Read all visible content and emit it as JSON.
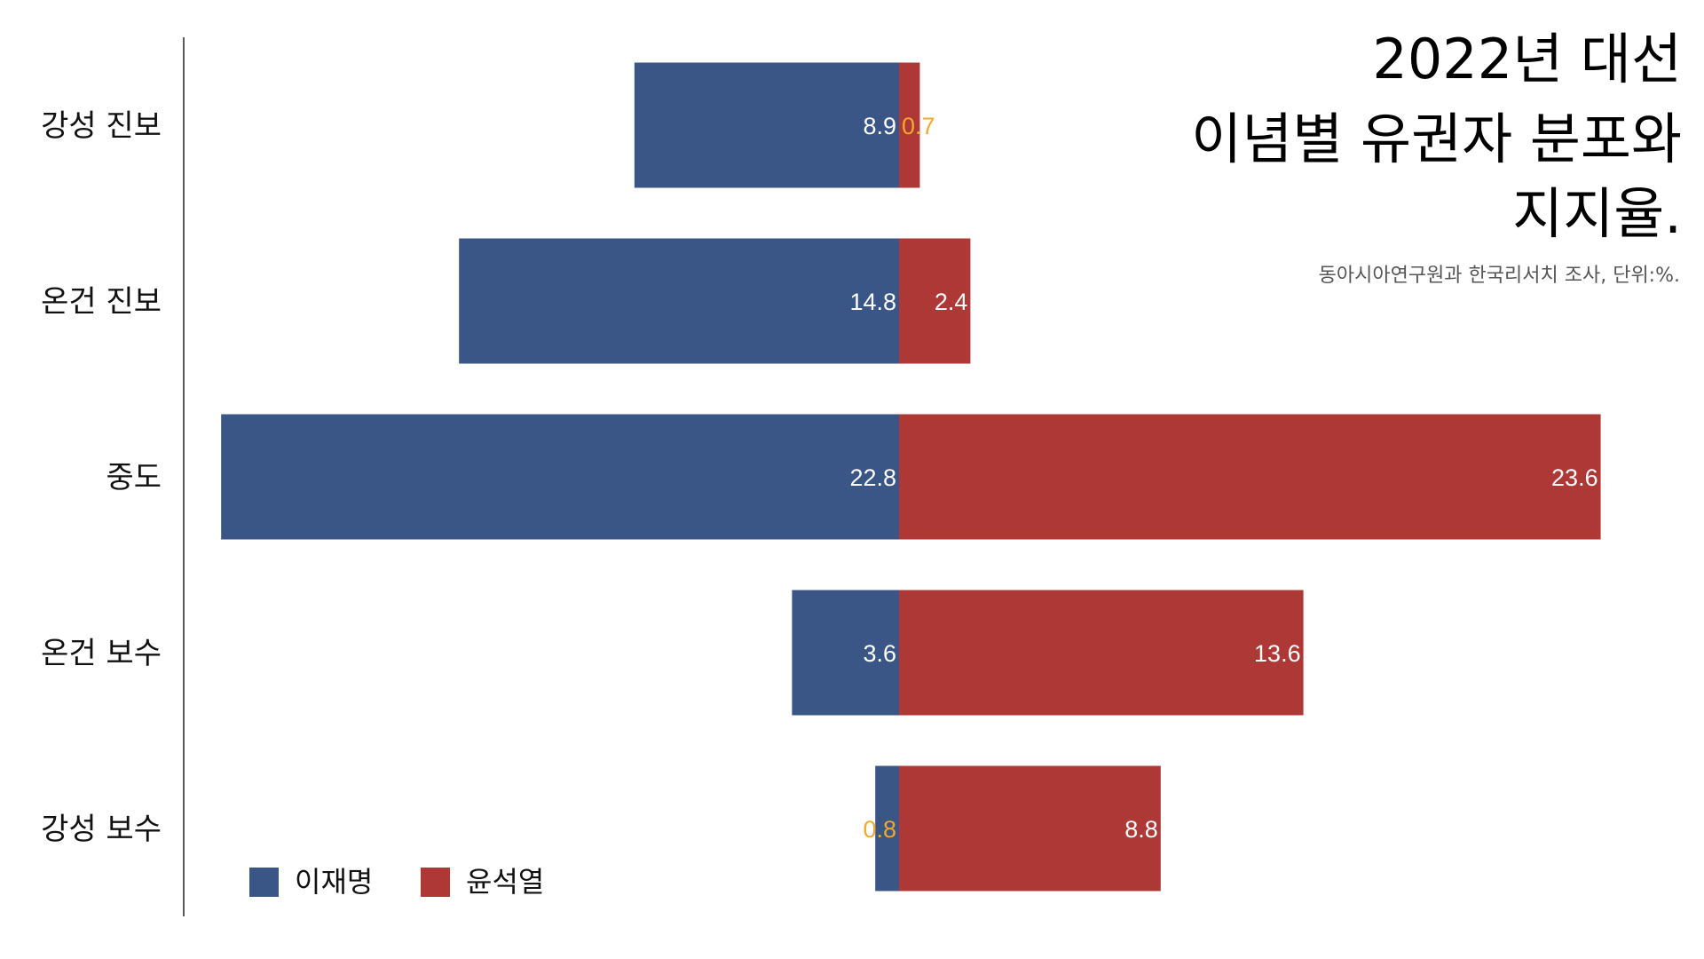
{
  "chart_data": {
    "type": "bar",
    "orientation": "horizontal-diverging",
    "title_lines": [
      "2022년 대선",
      "이념별 유권자 분포와",
      "지지율."
    ],
    "subtitle": "동아시아연구원과 한국리서치 조사, 단위:%.",
    "categories": [
      "강성 진보",
      "온건 진보",
      "중도",
      "온건 보수",
      "강성 보수"
    ],
    "series": [
      {
        "name": "이재명",
        "color": "#3A5686",
        "direction": "left",
        "values": [
          8.9,
          14.8,
          22.8,
          3.6,
          0.8
        ],
        "label_text": [
          "8.9",
          "14.8",
          "22.8",
          "3.6",
          "0.8"
        ]
      },
      {
        "name": "윤석열",
        "color": "#AE3836",
        "direction": "right",
        "values": [
          0.7,
          2.4,
          23.6,
          13.6,
          8.8
        ],
        "label_text": [
          "0.7",
          "2.4",
          "23.6",
          "13.6",
          "8.8"
        ]
      }
    ],
    "small_label_color": "#F0A830",
    "label_color": "#FFFFFF",
    "legend_position": "bottom-left",
    "grid": false
  }
}
